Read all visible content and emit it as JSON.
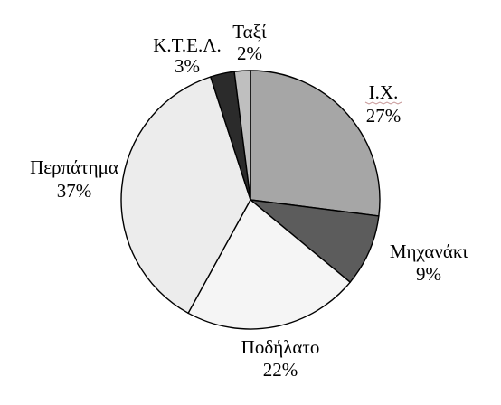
{
  "chart_data": {
    "type": "pie",
    "title": "",
    "slices": [
      {
        "label": "Ι.Χ.",
        "value": 27,
        "value_text": "27%",
        "color": "#a6a6a6",
        "squiggle": true
      },
      {
        "label": "Μηχανάκι",
        "value": 9,
        "value_text": "9%",
        "color": "#5c5c5c"
      },
      {
        "label": "Ποδήλατο",
        "value": 22,
        "value_text": "22%",
        "color": "#f5f5f5"
      },
      {
        "label": "Περπάτημα",
        "value": 37,
        "value_text": "37%",
        "color": "#ececec"
      },
      {
        "label": "Κ.Τ.Ε.Λ.",
        "value": 3,
        "value_text": "3%",
        "color": "#2b2b2b"
      },
      {
        "label": "Ταξί",
        "value": 2,
        "value_text": "2%",
        "color": "#bfbfbf"
      }
    ],
    "start_angle_deg": 0,
    "direction": "clockwise"
  }
}
